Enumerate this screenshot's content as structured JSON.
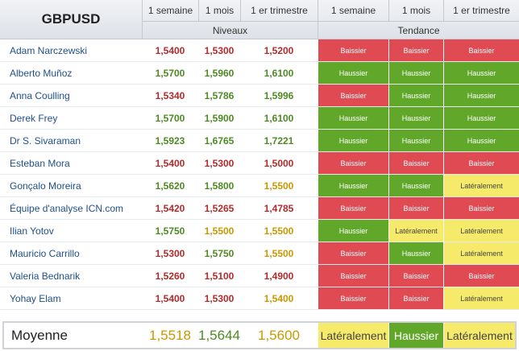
{
  "header": {
    "title": "GBPUSD",
    "col_1w": "1 semaine",
    "col_1m": "1 mois",
    "col_1q": "1 er trimestre",
    "group_levels": "Niveaux",
    "group_trend": "Tendance"
  },
  "rows": [
    {
      "name": "Adam Narczewski",
      "l1": "1,5400",
      "l2": "1,5300",
      "l3": "1,5200",
      "c1": "red",
      "c2": "red",
      "c3": "red",
      "t1": "Baissier",
      "t2": "Baissier",
      "t3": "Baissier"
    },
    {
      "name": "Alberto Muñoz",
      "l1": "1,5700",
      "l2": "1,5960",
      "l3": "1,6100",
      "c1": "green",
      "c2": "green",
      "c3": "green",
      "t1": "Haussier",
      "t2": "Haussier",
      "t3": "Haussier"
    },
    {
      "name": "Anna Coulling",
      "l1": "1,5340",
      "l2": "1,5786",
      "l3": "1,5996",
      "c1": "red",
      "c2": "green",
      "c3": "green",
      "t1": "Baissier",
      "t2": "Haussier",
      "t3": "Haussier"
    },
    {
      "name": "Derek Frey",
      "l1": "1,5700",
      "l2": "1,5900",
      "l3": "1,6100",
      "c1": "green",
      "c2": "green",
      "c3": "green",
      "t1": "Haussier",
      "t2": "Haussier",
      "t3": "Haussier"
    },
    {
      "name": "Dr S. Sivaraman",
      "l1": "1,5923",
      "l2": "1,6765",
      "l3": "1,7221",
      "c1": "green",
      "c2": "green",
      "c3": "green",
      "t1": "Haussier",
      "t2": "Haussier",
      "t3": "Haussier"
    },
    {
      "name": "Esteban Mora",
      "l1": "1,5400",
      "l2": "1,5300",
      "l3": "1,5000",
      "c1": "red",
      "c2": "red",
      "c3": "red",
      "t1": "Baissier",
      "t2": "Baissier",
      "t3": "Baissier"
    },
    {
      "name": "Gonçalo Moreira",
      "l1": "1,5620",
      "l2": "1,5800",
      "l3": "1,5500",
      "c1": "green",
      "c2": "green",
      "c3": "orange",
      "t1": "Haussier",
      "t2": "Haussier",
      "t3": "Latéralement"
    },
    {
      "name": "Équipe d'analyse ICN.com",
      "l1": "1,5420",
      "l2": "1,5265",
      "l3": "1,4785",
      "c1": "red",
      "c2": "red",
      "c3": "red",
      "t1": "Baissier",
      "t2": "Baissier",
      "t3": "Baissier"
    },
    {
      "name": "Ilian Yotov",
      "l1": "1,5750",
      "l2": "1,5500",
      "l3": "1,5500",
      "c1": "green",
      "c2": "orange",
      "c3": "orange",
      "t1": "Haussier",
      "t2": "Latéralement",
      "t3": "Latéralement"
    },
    {
      "name": "Mauricio Carrillo",
      "l1": "1,5300",
      "l2": "1,5750",
      "l3": "1,5500",
      "c1": "red",
      "c2": "green",
      "c3": "orange",
      "t1": "Baissier",
      "t2": "Haussier",
      "t3": "Latéralement"
    },
    {
      "name": "Valeria Bednarik",
      "l1": "1,5260",
      "l2": "1,5100",
      "l3": "1,4900",
      "c1": "red",
      "c2": "red",
      "c3": "red",
      "t1": "Baissier",
      "t2": "Baissier",
      "t3": "Baissier"
    },
    {
      "name": "Yohay Elam",
      "l1": "1,5400",
      "l2": "1,5300",
      "l3": "1,5400",
      "c1": "red",
      "c2": "red",
      "c3": "orange",
      "t1": "Baissier",
      "t2": "Baissier",
      "t3": "Latéralement"
    }
  ],
  "average": {
    "label": "Moyenne",
    "l1": "1,5518",
    "l2": "1,5644",
    "l3": "1,5600",
    "c1": "orange",
    "c2": "green",
    "c3": "orange",
    "t1": "Latéralement",
    "t2": "Haussier",
    "t3": "Latéralement"
  },
  "trend_colors": {
    "Baissier": "#e04a52",
    "Haussier": "#61a82a",
    "Latéralement": "#f6ea6a"
  },
  "level_colors": {
    "red": "#b22a2a",
    "green": "#4e8a22",
    "orange": "#c99700"
  }
}
